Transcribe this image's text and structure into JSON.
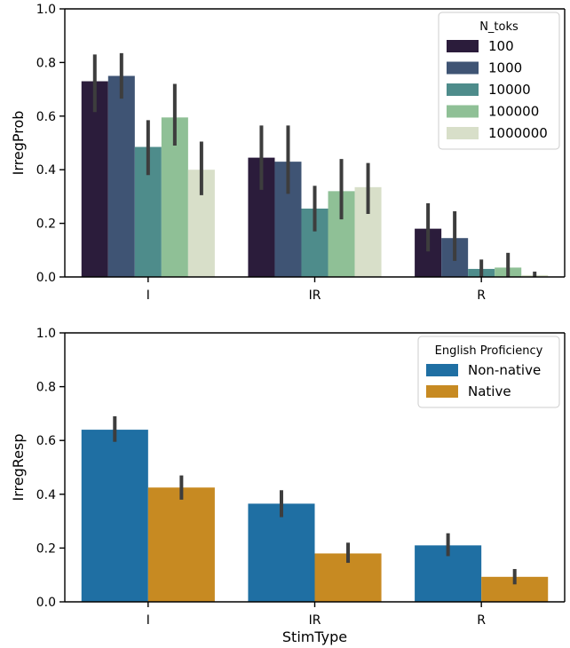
{
  "chart_data": [
    {
      "type": "bar",
      "categories": [
        "I",
        "IR",
        "R"
      ],
      "ylabel": "IrregProb",
      "xlabel": "",
      "ylim": [
        0,
        1.0
      ],
      "yticks": [
        "0.0",
        "0.2",
        "0.4",
        "0.6",
        "0.8",
        "1.0"
      ],
      "legend": {
        "title": "N_toks",
        "placement": "top-right"
      },
      "series": [
        {
          "name": "100",
          "color": "#2b1c3b",
          "values": [
            0.73,
            0.445,
            0.18
          ],
          "err_low": [
            0.615,
            0.325,
            0.095
          ],
          "err_high": [
            0.83,
            0.565,
            0.275
          ]
        },
        {
          "name": "1000",
          "color": "#3f5474",
          "values": [
            0.75,
            0.43,
            0.145
          ],
          "err_low": [
            0.665,
            0.31,
            0.06
          ],
          "err_high": [
            0.835,
            0.565,
            0.245
          ]
        },
        {
          "name": "10000",
          "color": "#4e8c8b",
          "values": [
            0.485,
            0.255,
            0.03
          ],
          "err_low": [
            0.38,
            0.17,
            0.0
          ],
          "err_high": [
            0.585,
            0.34,
            0.065
          ]
        },
        {
          "name": "100000",
          "color": "#8fc096",
          "values": [
            0.595,
            0.32,
            0.035
          ],
          "err_low": [
            0.49,
            0.215,
            0.0
          ],
          "err_high": [
            0.72,
            0.44,
            0.09
          ]
        },
        {
          "name": "1000000",
          "color": "#d8dfc9",
          "values": [
            0.4,
            0.335,
            0.007
          ],
          "err_low": [
            0.305,
            0.235,
            0.0
          ],
          "err_high": [
            0.505,
            0.425,
            0.02
          ]
        }
      ]
    },
    {
      "type": "bar",
      "categories": [
        "I",
        "IR",
        "R"
      ],
      "ylabel": "IrregResp",
      "xlabel": "StimType",
      "ylim": [
        0,
        1.0
      ],
      "yticks": [
        "0.0",
        "0.2",
        "0.4",
        "0.6",
        "0.8",
        "1.0"
      ],
      "legend": {
        "title": "English Proficiency",
        "placement": "top-right"
      },
      "series": [
        {
          "name": "Non-native",
          "color": "#1f6fa3",
          "values": [
            0.64,
            0.365,
            0.21
          ],
          "err_low": [
            0.595,
            0.315,
            0.17
          ],
          "err_high": [
            0.69,
            0.415,
            0.255
          ]
        },
        {
          "name": "Native",
          "color": "#c78a22",
          "values": [
            0.425,
            0.18,
            0.093
          ],
          "err_low": [
            0.38,
            0.145,
            0.065
          ],
          "err_high": [
            0.47,
            0.22,
            0.122
          ]
        }
      ]
    }
  ]
}
